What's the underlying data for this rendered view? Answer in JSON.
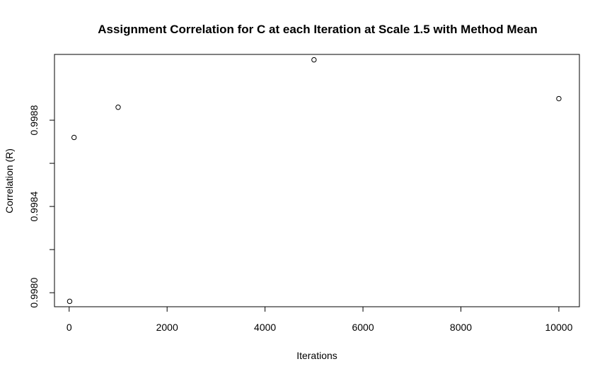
{
  "chart_data": {
    "type": "scatter",
    "title": "Assignment Correlation for C at each Iteration at Scale 1.5 with Method Mean",
    "xlabel": "Iterations",
    "ylabel": "Correlation (R)",
    "x": [
      10,
      100,
      1000,
      5000,
      10000
    ],
    "y": [
      0.99796,
      0.99872,
      0.99886,
      0.99908,
      0.9989
    ],
    "xlim": [
      -300,
      10420
    ],
    "ylim": [
      0.997935,
      0.999105
    ],
    "x_ticks": [
      0,
      2000,
      4000,
      6000,
      8000,
      10000
    ],
    "x_tick_labels": [
      "0",
      "2000",
      "4000",
      "6000",
      "8000",
      "10000"
    ],
    "y_ticks": [
      0.998,
      0.9984,
      0.9988
    ],
    "y_tick_labels": [
      "0.9980",
      "0.9984",
      "0.9988"
    ],
    "y_minor_ticks": [
      0.9982,
      0.9986
    ],
    "grid": false,
    "marker": "open-circle",
    "color": "#000000"
  }
}
